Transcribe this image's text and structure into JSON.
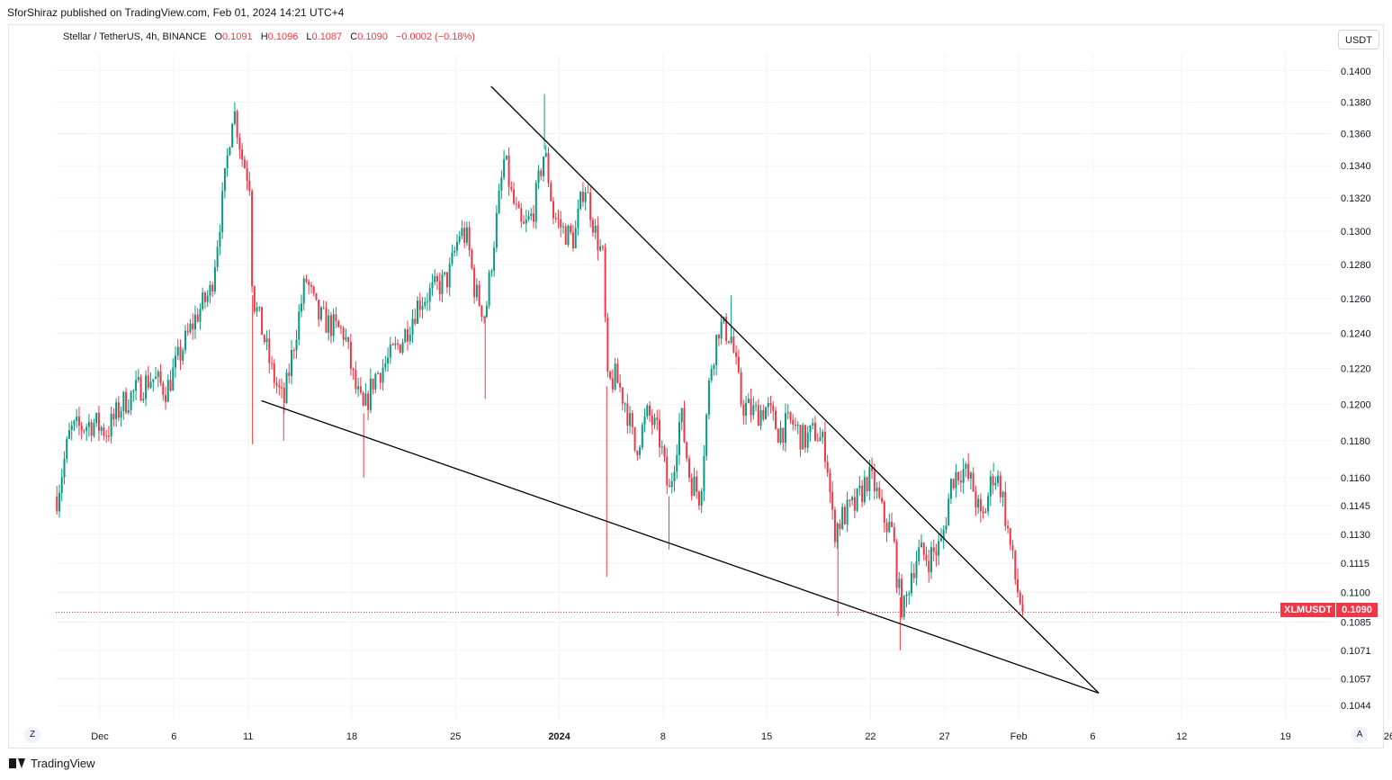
{
  "header": {
    "published": "SforShiraz published on TradingView.com, Feb 01, 2024 14:21 UTC+4"
  },
  "legend": {
    "symbol": "Stellar / TetherUS, 4h, BINANCE",
    "o_label": "O",
    "o": "0.1091",
    "h_label": "H",
    "h": "0.1096",
    "l_label": "L",
    "l": "0.1087",
    "c_label": "C",
    "c": "0.1090",
    "change": "−0.0002 (−0.18%)"
  },
  "currency": "USDT",
  "last": {
    "ticker": "XLMUSDT",
    "price": "0.1090"
  },
  "axis_buttons": {
    "left": "Z",
    "right": "A"
  },
  "footer": {
    "brand": "TradingView"
  },
  "colors": {
    "up": "#089981",
    "down": "#f23645",
    "grid": "#f0f3fa",
    "trendline": "#000000"
  },
  "chart_data": {
    "type": "candlestick",
    "symbol": "XLMUSDT",
    "timeframe": "4h",
    "y_ticks": [
      "0.1400",
      "0.1380",
      "0.1360",
      "0.1340",
      "0.1320",
      "0.1300",
      "0.1280",
      "0.1260",
      "0.1240",
      "0.1220",
      "0.1200",
      "0.1180",
      "0.1160",
      "0.1145",
      "0.1130",
      "0.1115",
      "0.1100",
      "0.1085",
      "0.1071",
      "0.1057",
      "0.1044"
    ],
    "x_ticks": [
      {
        "label": "Dec",
        "day": 0
      },
      {
        "label": "6",
        "day": 5
      },
      {
        "label": "11",
        "day": 10
      },
      {
        "label": "18",
        "day": 17
      },
      {
        "label": "25",
        "day": 24
      },
      {
        "label": "2024",
        "day": 31
      },
      {
        "label": "8",
        "day": 38
      },
      {
        "label": "15",
        "day": 45
      },
      {
        "label": "22",
        "day": 52
      },
      {
        "label": "27",
        "day": 57
      },
      {
        "label": "Feb",
        "day": 62
      },
      {
        "label": "6",
        "day": 67
      },
      {
        "label": "12",
        "day": 73
      },
      {
        "label": "19",
        "day": 80
      },
      {
        "label": "26",
        "day": 87
      }
    ],
    "price_path": [
      {
        "day": -2.9,
        "price": 0.115
      },
      {
        "day": -2.0,
        "price": 0.1185
      },
      {
        "day": -0.5,
        "price": 0.119
      },
      {
        "day": 0.5,
        "price": 0.1185
      },
      {
        "day": 1.5,
        "price": 0.12
      },
      {
        "day": 2.5,
        "price": 0.1208
      },
      {
        "day": 3.5,
        "price": 0.1215
      },
      {
        "day": 4.5,
        "price": 0.1208
      },
      {
        "day": 5.5,
        "price": 0.123
      },
      {
        "day": 6.5,
        "price": 0.125
      },
      {
        "day": 7.5,
        "price": 0.1265
      },
      {
        "day": 8.3,
        "price": 0.132
      },
      {
        "day": 9.0,
        "price": 0.1378
      },
      {
        "day": 9.6,
        "price": 0.1345
      },
      {
        "day": 10.1,
        "price": 0.133
      },
      {
        "day": 10.3,
        "price": 0.1262
      },
      {
        "day": 11.0,
        "price": 0.124
      },
      {
        "day": 11.6,
        "price": 0.1218
      },
      {
        "day": 12.4,
        "price": 0.12
      },
      {
        "day": 13.1,
        "price": 0.1235
      },
      {
        "day": 13.9,
        "price": 0.1272
      },
      {
        "day": 14.7,
        "price": 0.125
      },
      {
        "day": 15.5,
        "price": 0.1245
      },
      {
        "day": 16.5,
        "price": 0.124
      },
      {
        "day": 17.2,
        "price": 0.121
      },
      {
        "day": 17.8,
        "price": 0.1195
      },
      {
        "day": 18.5,
        "price": 0.1215
      },
      {
        "day": 19.5,
        "price": 0.1225
      },
      {
        "day": 20.5,
        "price": 0.1238
      },
      {
        "day": 21.5,
        "price": 0.1258
      },
      {
        "day": 22.5,
        "price": 0.1265
      },
      {
        "day": 23.5,
        "price": 0.1272
      },
      {
        "day": 24.3,
        "price": 0.13
      },
      {
        "day": 24.8,
        "price": 0.1295
      },
      {
        "day": 25.3,
        "price": 0.1265
      },
      {
        "day": 26.0,
        "price": 0.125
      },
      {
        "day": 26.6,
        "price": 0.1295
      },
      {
        "day": 27.3,
        "price": 0.1345
      },
      {
        "day": 27.8,
        "price": 0.132
      },
      {
        "day": 28.5,
        "price": 0.13
      },
      {
        "day": 29.2,
        "price": 0.131
      },
      {
        "day": 30.0,
        "price": 0.135
      },
      {
        "day": 30.6,
        "price": 0.131
      },
      {
        "day": 31.3,
        "price": 0.13
      },
      {
        "day": 32.0,
        "price": 0.1295
      },
      {
        "day": 32.7,
        "price": 0.133
      },
      {
        "day": 33.4,
        "price": 0.13
      },
      {
        "day": 34.0,
        "price": 0.1282
      },
      {
        "day": 34.2,
        "price": 0.121
      },
      {
        "day": 34.8,
        "price": 0.1215
      },
      {
        "day": 35.5,
        "price": 0.12
      },
      {
        "day": 36.1,
        "price": 0.1175
      },
      {
        "day": 37.0,
        "price": 0.1195
      },
      {
        "day": 37.8,
        "price": 0.118
      },
      {
        "day": 38.4,
        "price": 0.115
      },
      {
        "day": 39.2,
        "price": 0.1195
      },
      {
        "day": 39.8,
        "price": 0.116
      },
      {
        "day": 40.5,
        "price": 0.115
      },
      {
        "day": 41.2,
        "price": 0.122
      },
      {
        "day": 41.8,
        "price": 0.1245
      },
      {
        "day": 42.6,
        "price": 0.1238
      },
      {
        "day": 43.3,
        "price": 0.12
      },
      {
        "day": 44.2,
        "price": 0.1195
      },
      {
        "day": 45.0,
        "price": 0.1198
      },
      {
        "day": 45.8,
        "price": 0.1185
      },
      {
        "day": 46.7,
        "price": 0.119
      },
      {
        "day": 47.5,
        "price": 0.118
      },
      {
        "day": 48.3,
        "price": 0.1185
      },
      {
        "day": 49.0,
        "price": 0.1175
      },
      {
        "day": 49.5,
        "price": 0.1132
      },
      {
        "day": 50.2,
        "price": 0.114
      },
      {
        "day": 51.0,
        "price": 0.1145
      },
      {
        "day": 51.8,
        "price": 0.116
      },
      {
        "day": 52.3,
        "price": 0.1155
      },
      {
        "day": 52.8,
        "price": 0.114
      },
      {
        "day": 53.5,
        "price": 0.113
      },
      {
        "day": 53.9,
        "price": 0.11
      },
      {
        "day": 54.3,
        "price": 0.109
      },
      {
        "day": 54.7,
        "price": 0.111
      },
      {
        "day": 55.2,
        "price": 0.112
      },
      {
        "day": 56.0,
        "price": 0.1118
      },
      {
        "day": 56.8,
        "price": 0.1125
      },
      {
        "day": 57.5,
        "price": 0.116
      },
      {
        "day": 58.2,
        "price": 0.1165
      },
      {
        "day": 58.9,
        "price": 0.1155
      },
      {
        "day": 59.5,
        "price": 0.1135
      },
      {
        "day": 60.3,
        "price": 0.1163
      },
      {
        "day": 60.8,
        "price": 0.1155
      },
      {
        "day": 61.4,
        "price": 0.1125
      },
      {
        "day": 61.8,
        "price": 0.1105
      },
      {
        "day": 62.3,
        "price": 0.109
      }
    ],
    "spikes": [
      {
        "day": 10.3,
        "low": 0.1178
      },
      {
        "day": 12.4,
        "low": 0.118
      },
      {
        "day": 17.8,
        "low": 0.116
      },
      {
        "day": 26.0,
        "low": 0.1203
      },
      {
        "day": 30.0,
        "high": 0.1385
      },
      {
        "day": 34.2,
        "low": 0.1108
      },
      {
        "day": 38.4,
        "low": 0.1122
      },
      {
        "day": 42.6,
        "high": 0.1262
      },
      {
        "day": 49.8,
        "low": 0.1088
      },
      {
        "day": 54.0,
        "low": 0.1071
      },
      {
        "day": 60.3,
        "high": 0.1168
      }
    ],
    "trendlines": [
      {
        "name": "upper",
        "from": {
          "day": 26.4,
          "price": 0.139
        },
        "to": {
          "day": 67.4,
          "price": 0.105
        }
      },
      {
        "name": "lower",
        "from": {
          "day": 10.9,
          "price": 0.1202
        },
        "to": {
          "day": 67.4,
          "price": 0.105
        }
      }
    ],
    "last_price": 0.109
  }
}
